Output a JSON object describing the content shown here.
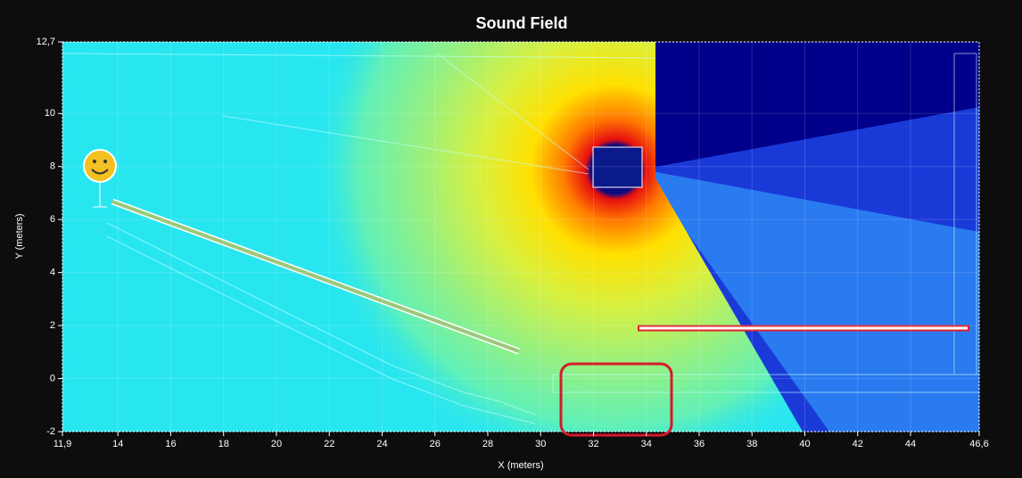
{
  "chart_data": {
    "type": "field",
    "title": "Sound Field",
    "x_label": "X (meters)",
    "y_label": "Y (meters)",
    "xlim": [
      11.9,
      46.6
    ],
    "ylim": [
      -2,
      12.7
    ],
    "xticks": [
      {
        "value": 11.9,
        "label": "11,9"
      },
      14,
      16,
      18,
      20,
      22,
      24,
      26,
      28,
      30,
      32,
      34,
      36,
      38,
      40,
      42,
      44,
      {
        "value": 46.6,
        "label": "46,6"
      }
    ],
    "yticks": [
      -2,
      0,
      2,
      4,
      6,
      8,
      10,
      {
        "value": 12.7,
        "label": "12,7"
      }
    ],
    "grid": true
  }
}
